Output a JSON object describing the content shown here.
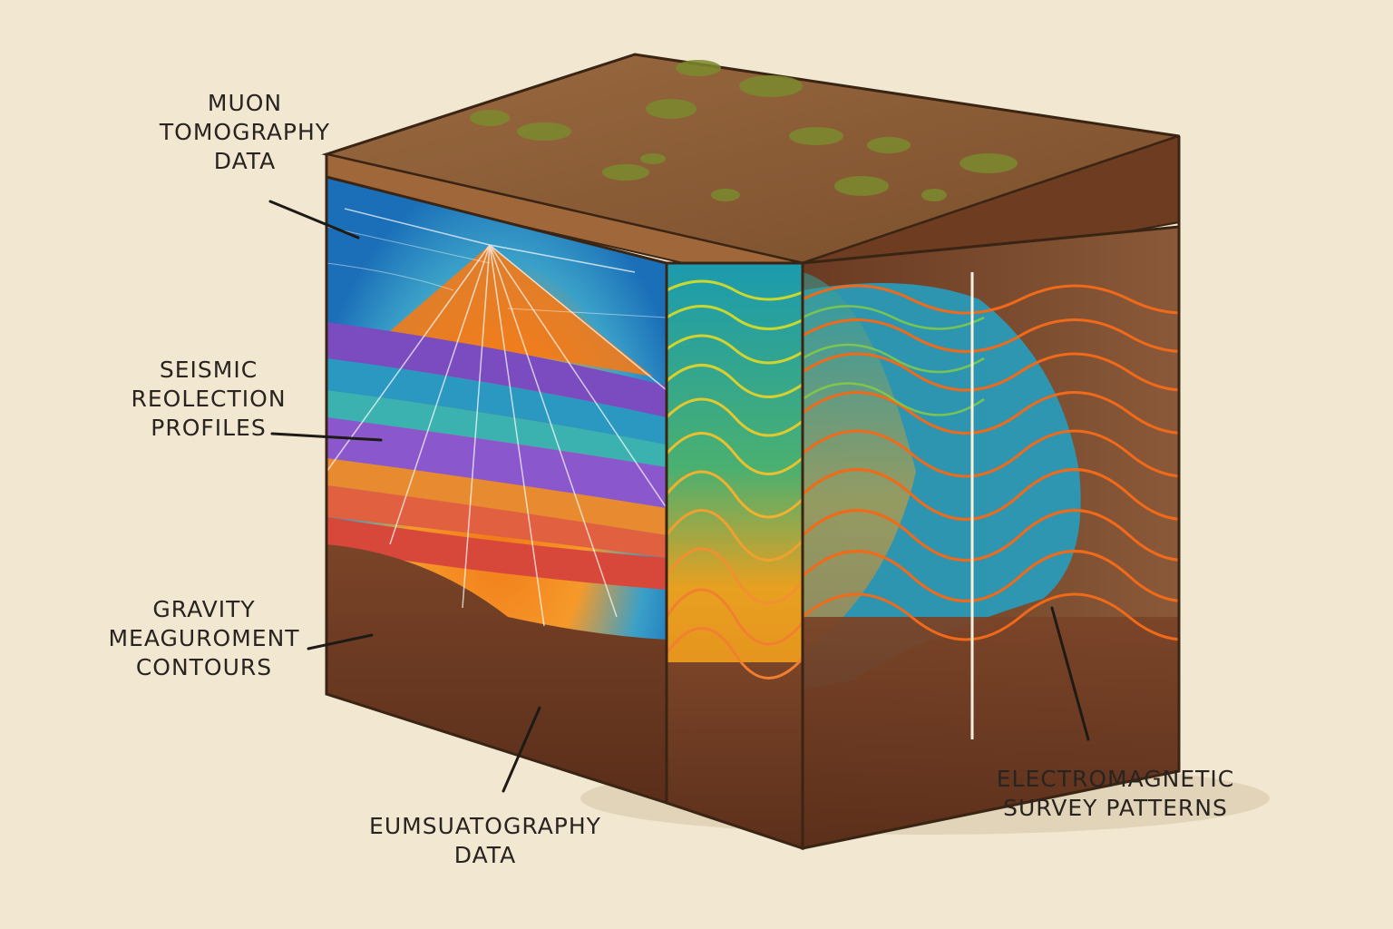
{
  "labels": {
    "muon": [
      "MUON",
      "TOMOGRAPHY",
      "DATA"
    ],
    "seismic": [
      "SEISMIC",
      "REOLECTION",
      "PROFILES"
    ],
    "gravity": [
      "GRAVITY",
      "MEAGUROMENT",
      "CONTOURS"
    ],
    "eumsuat": [
      "EUMSUATOGRAPHY",
      "DATA"
    ],
    "electromagnetic": [
      "ELECTROMAGNETIC",
      "SURVEY PATTERNS"
    ]
  },
  "colors": {
    "background": "#f2e8d2",
    "soil": "#8a5a35",
    "soil_dark": "#5e3520",
    "moss": "#7a8a30",
    "muon_blue": "#1f7fc0",
    "muon_orange": "#f07a1a",
    "seismic_purple": "#7a4cc0",
    "seismic_teal": "#2a9cc0",
    "seismic_red": "#e0603a",
    "em_orange": "#f06a1a",
    "em_teal": "#2a8ab0",
    "wave_yellow": "#d8d020"
  }
}
